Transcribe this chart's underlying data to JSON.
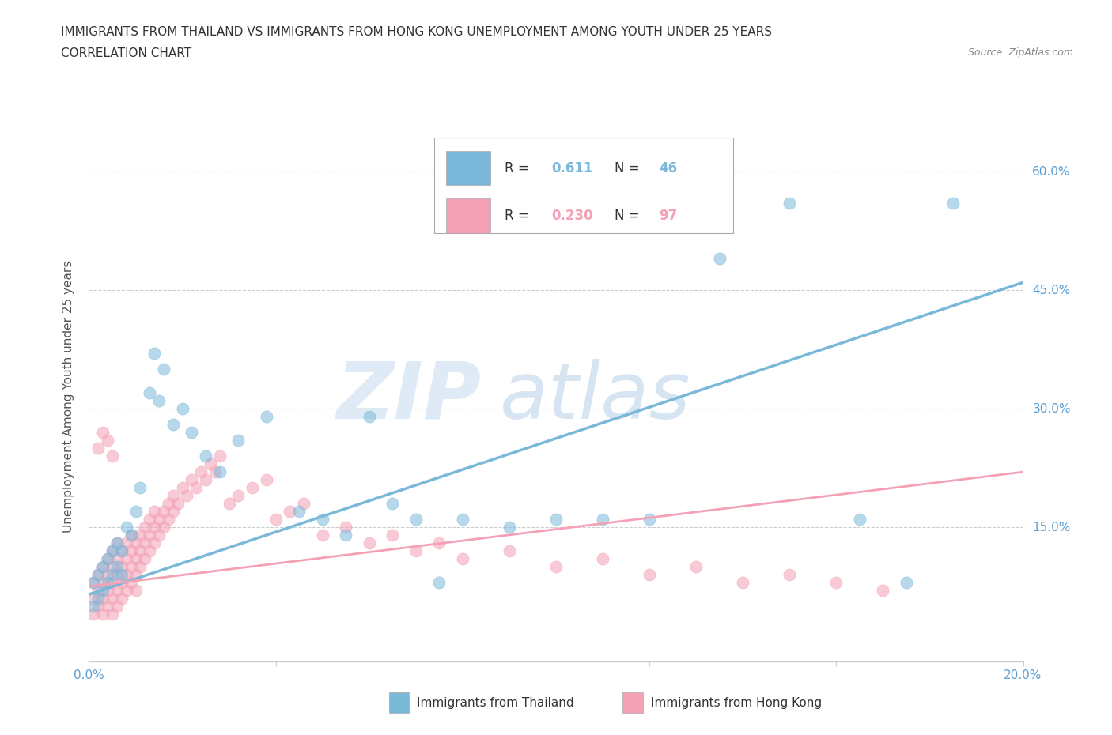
{
  "title_line1": "IMMIGRANTS FROM THAILAND VS IMMIGRANTS FROM HONG KONG UNEMPLOYMENT AMONG YOUTH UNDER 25 YEARS",
  "title_line2": "CORRELATION CHART",
  "source": "Source: ZipAtlas.com",
  "ylabel": "Unemployment Among Youth under 25 years",
  "xlim": [
    0.0,
    0.2
  ],
  "ylim": [
    -0.02,
    0.65
  ],
  "xticks": [
    0.0,
    0.04,
    0.08,
    0.12,
    0.16,
    0.2
  ],
  "xtick_labels": [
    "0.0%",
    "",
    "",
    "",
    "",
    "20.0%"
  ],
  "yticks": [
    0.0,
    0.15,
    0.3,
    0.45,
    0.6
  ],
  "ytick_labels": [
    "",
    "15.0%",
    "30.0%",
    "45.0%",
    "60.0%"
  ],
  "thailand_color": "#7ab8d9",
  "hongkong_color": "#f4a0b5",
  "thailand_r": "0.611",
  "thailand_n": "46",
  "hongkong_r": "0.230",
  "hongkong_n": "97",
  "grid_color": "#cccccc",
  "background_color": "#ffffff",
  "thailand_label": "Immigrants from Thailand",
  "hongkong_label": "Immigrants from Hong Kong",
  "watermark_zip": "ZIP",
  "watermark_atlas": "atlas",
  "thailand_trend_x": [
    0.0,
    0.2
  ],
  "thailand_trend_y": [
    0.065,
    0.46
  ],
  "hongkong_trend_x": [
    0.0,
    0.2
  ],
  "hongkong_trend_y": [
    0.075,
    0.22
  ],
  "thailand_scatter_x": [
    0.001,
    0.001,
    0.002,
    0.002,
    0.003,
    0.003,
    0.004,
    0.004,
    0.005,
    0.005,
    0.006,
    0.006,
    0.007,
    0.007,
    0.008,
    0.009,
    0.01,
    0.011,
    0.013,
    0.014,
    0.015,
    0.016,
    0.018,
    0.02,
    0.022,
    0.025,
    0.028,
    0.032,
    0.038,
    0.045,
    0.05,
    0.055,
    0.06,
    0.065,
    0.07,
    0.075,
    0.08,
    0.09,
    0.1,
    0.11,
    0.12,
    0.135,
    0.15,
    0.165,
    0.175,
    0.185
  ],
  "thailand_scatter_y": [
    0.05,
    0.08,
    0.06,
    0.09,
    0.07,
    0.1,
    0.08,
    0.11,
    0.09,
    0.12,
    0.1,
    0.13,
    0.09,
    0.12,
    0.15,
    0.14,
    0.17,
    0.2,
    0.32,
    0.37,
    0.31,
    0.35,
    0.28,
    0.3,
    0.27,
    0.24,
    0.22,
    0.26,
    0.29,
    0.17,
    0.16,
    0.14,
    0.29,
    0.18,
    0.16,
    0.08,
    0.16,
    0.15,
    0.16,
    0.16,
    0.16,
    0.49,
    0.56,
    0.16,
    0.08,
    0.56
  ],
  "hongkong_scatter_x": [
    0.001,
    0.001,
    0.001,
    0.002,
    0.002,
    0.002,
    0.003,
    0.003,
    0.003,
    0.003,
    0.004,
    0.004,
    0.004,
    0.004,
    0.005,
    0.005,
    0.005,
    0.005,
    0.005,
    0.006,
    0.006,
    0.006,
    0.006,
    0.006,
    0.007,
    0.007,
    0.007,
    0.007,
    0.008,
    0.008,
    0.008,
    0.008,
    0.009,
    0.009,
    0.009,
    0.009,
    0.01,
    0.01,
    0.01,
    0.01,
    0.011,
    0.011,
    0.011,
    0.012,
    0.012,
    0.012,
    0.013,
    0.013,
    0.013,
    0.014,
    0.014,
    0.014,
    0.015,
    0.015,
    0.016,
    0.016,
    0.017,
    0.017,
    0.018,
    0.018,
    0.019,
    0.02,
    0.021,
    0.022,
    0.023,
    0.024,
    0.025,
    0.026,
    0.027,
    0.028,
    0.03,
    0.032,
    0.035,
    0.038,
    0.04,
    0.043,
    0.046,
    0.05,
    0.055,
    0.06,
    0.065,
    0.07,
    0.075,
    0.08,
    0.09,
    0.1,
    0.11,
    0.12,
    0.13,
    0.14,
    0.15,
    0.16,
    0.002,
    0.003,
    0.004,
    0.005,
    0.17
  ],
  "hongkong_scatter_y": [
    0.04,
    0.06,
    0.08,
    0.05,
    0.07,
    0.09,
    0.04,
    0.06,
    0.08,
    0.1,
    0.05,
    0.07,
    0.09,
    0.11,
    0.04,
    0.06,
    0.08,
    0.1,
    0.12,
    0.05,
    0.07,
    0.09,
    0.11,
    0.13,
    0.06,
    0.08,
    0.1,
    0.12,
    0.07,
    0.09,
    0.11,
    0.13,
    0.08,
    0.1,
    0.12,
    0.14,
    0.07,
    0.09,
    0.11,
    0.13,
    0.1,
    0.12,
    0.14,
    0.11,
    0.13,
    0.15,
    0.12,
    0.14,
    0.16,
    0.13,
    0.15,
    0.17,
    0.14,
    0.16,
    0.15,
    0.17,
    0.16,
    0.18,
    0.17,
    0.19,
    0.18,
    0.2,
    0.19,
    0.21,
    0.2,
    0.22,
    0.21,
    0.23,
    0.22,
    0.24,
    0.18,
    0.19,
    0.2,
    0.21,
    0.16,
    0.17,
    0.18,
    0.14,
    0.15,
    0.13,
    0.14,
    0.12,
    0.13,
    0.11,
    0.12,
    0.1,
    0.11,
    0.09,
    0.1,
    0.08,
    0.09,
    0.08,
    0.25,
    0.27,
    0.26,
    0.24,
    0.07
  ]
}
